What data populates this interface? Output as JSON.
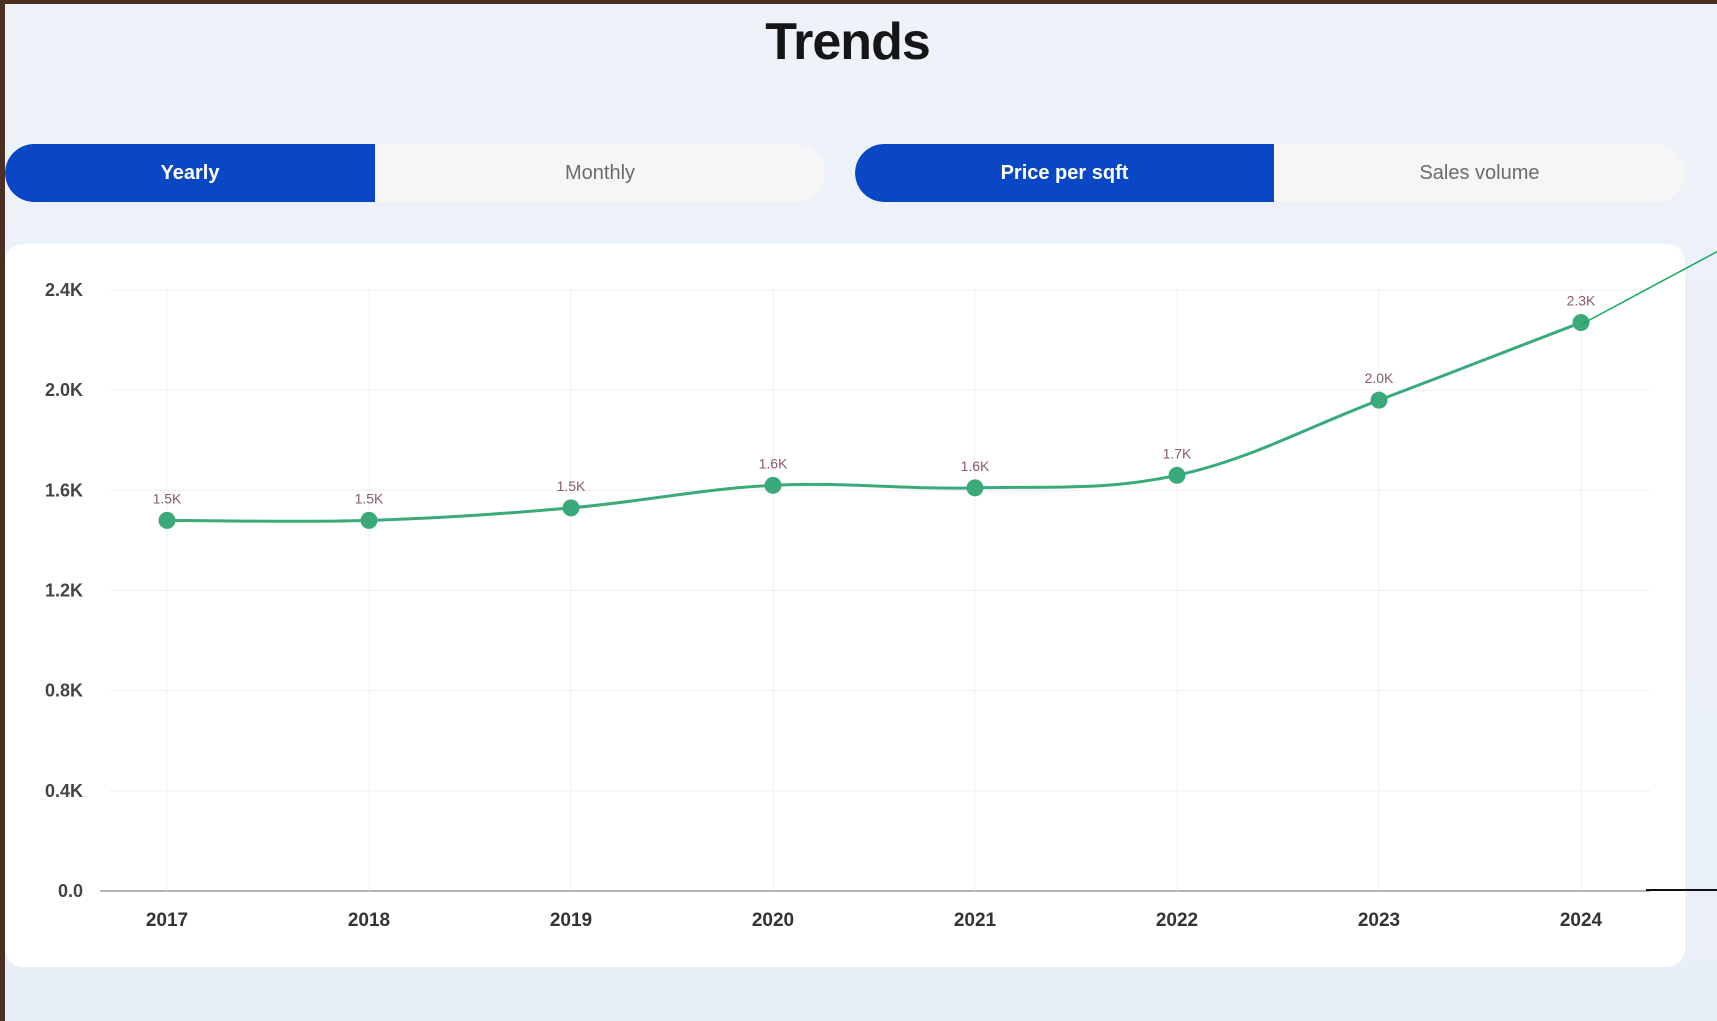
{
  "title": "Trends",
  "period_toggle": {
    "options": [
      "Yearly",
      "Monthly"
    ],
    "selected": "Yearly"
  },
  "metric_toggle": {
    "options": [
      "Price per sqft",
      "Sales volume"
    ],
    "selected": "Price per sqft"
  },
  "colors": {
    "accent": "#0a47c4",
    "series": "#3aaa7a",
    "background": "#eef2f9"
  },
  "chart_data": {
    "type": "line",
    "categories": [
      "2017",
      "2018",
      "2019",
      "2020",
      "2021",
      "2022",
      "2023",
      "2024"
    ],
    "series": [
      {
        "values": [
          1480,
          1480,
          1530,
          1620,
          1610,
          1660,
          1960,
          2270
        ],
        "data_labels": [
          "1.5K",
          "1.5K",
          "1.5K",
          "1.6K",
          "1.6K",
          "1.7K",
          "2.0K",
          "2.3K"
        ]
      }
    ],
    "y_ticks": [
      "0.0",
      "0.4K",
      "0.8K",
      "1.2K",
      "1.6K",
      "2.0K",
      "2.4K"
    ],
    "ylim": [
      0,
      2400
    ],
    "grid": true,
    "legend": "none"
  }
}
